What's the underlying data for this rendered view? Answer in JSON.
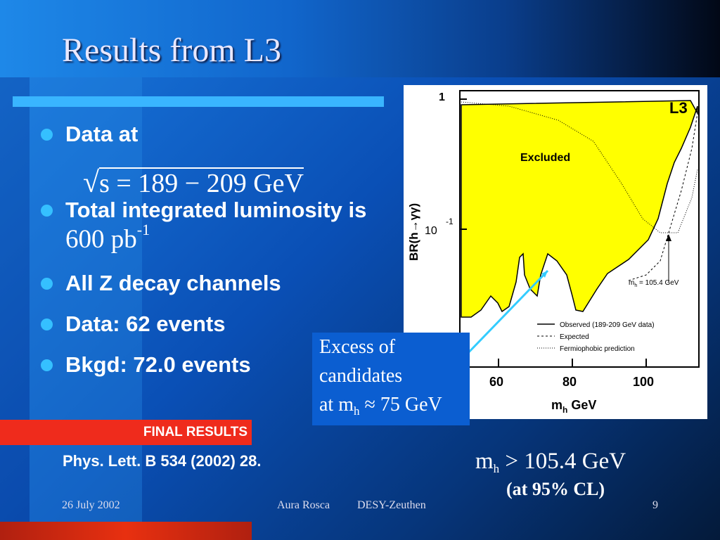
{
  "slide": {
    "title": "Results from L3",
    "bullets": [
      {
        "text": "Data at"
      },
      {
        "text": "Total integrated luminosity is"
      },
      {
        "text": "All Z decay channels"
      },
      {
        "text": "Data:  62 events"
      },
      {
        "text": "Bkgd: 72.0 events"
      }
    ],
    "energy_formula": {
      "sqrt_symbol": "√",
      "text": "s = 189 − 209 GeV"
    },
    "luminosity": {
      "value": "600 pb",
      "exponent": "-1"
    },
    "callout": {
      "line1": "Excess of",
      "line2": "candidates",
      "line3_prefix": "at m",
      "line3_sub": "h",
      "line3_rest": " ≈ 75 GeV"
    },
    "final_results": "FINAL RESULTS",
    "reference": "Phys. Lett. B 534 (2002) 28.",
    "limit": {
      "prefix": "m",
      "sub": "h",
      "rest": " > 105.4 GeV",
      "cl": "(at 95% CL)"
    },
    "footer": {
      "date": "26 July 2002",
      "author": "Aura Rosca",
      "institute": "DESY-Zeuthen",
      "page": "9"
    }
  },
  "plot": {
    "experiment_label": "L3",
    "excluded_label": "Excluded",
    "y_tick_1": "1",
    "y_tick_2": "10",
    "y_tick_2_exp": "-1",
    "ylabel": "BR(h→γγ)",
    "x_ticks": [
      "60",
      "80",
      "100"
    ],
    "xlabel_prefix": "m",
    "xlabel_sub": "h",
    "xlabel_rest": " GeV",
    "annotation_prefix": "m",
    "annotation_sub": "h",
    "annotation_rest": " = 105.4 GeV",
    "legend": [
      "Observed (189-209 GeV data)",
      "Expected",
      "Fermiophobic prediction"
    ],
    "colors": {
      "excluded_fill": "#ffff00",
      "arrow": "#33ccff"
    }
  }
}
